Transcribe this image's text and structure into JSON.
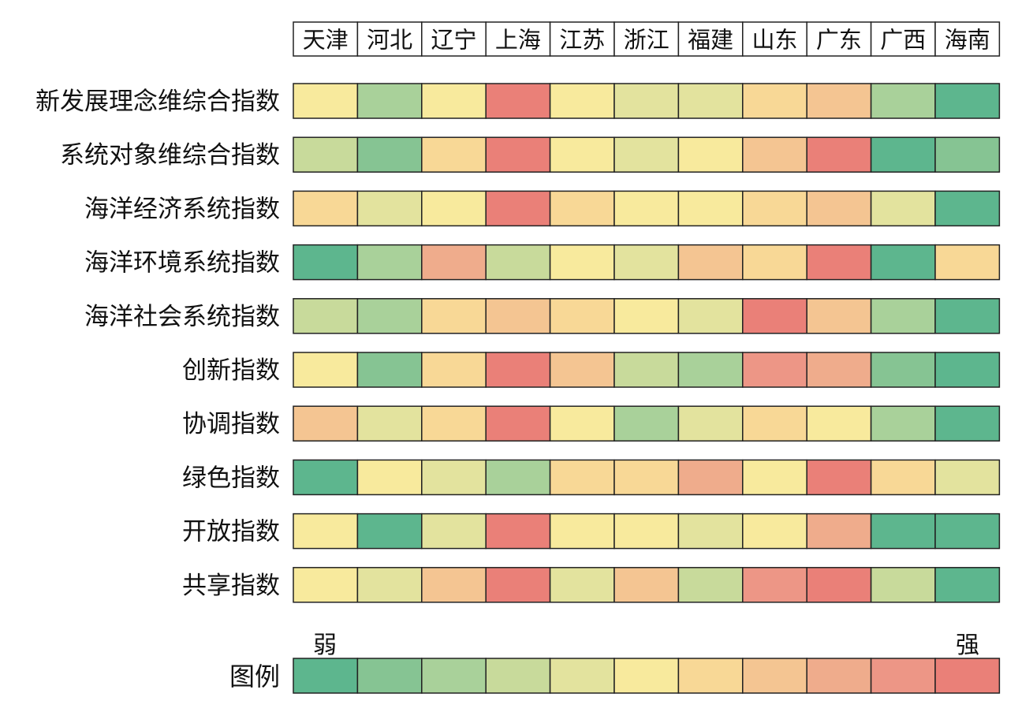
{
  "chart_data": {
    "type": "heatmap",
    "columns": [
      "天津",
      "河北",
      "辽宁",
      "上海",
      "江苏",
      "浙江",
      "福建",
      "山东",
      "广东",
      "广西",
      "海南"
    ],
    "rows": [
      {
        "label": "新发展理念维综合指数",
        "levels": [
          6,
          3,
          6,
          11,
          6,
          5,
          5,
          7,
          8,
          3,
          1
        ]
      },
      {
        "label": "系统对象维综合指数",
        "levels": [
          4,
          2,
          7,
          11,
          6,
          5,
          6,
          8,
          11,
          1,
          2
        ]
      },
      {
        "label": "海洋经济系统指数",
        "levels": [
          7,
          5,
          6,
          11,
          7,
          6,
          6,
          7,
          8,
          5,
          1
        ]
      },
      {
        "label": "海洋环境系统指数",
        "levels": [
          1,
          3,
          9,
          4,
          6,
          5,
          8,
          7,
          11,
          1,
          7
        ]
      },
      {
        "label": "海洋社会系统指数",
        "levels": [
          4,
          3,
          7,
          8,
          7,
          6,
          5,
          11,
          8,
          3,
          1
        ]
      },
      {
        "label": "创新指数",
        "levels": [
          6,
          2,
          7,
          11,
          8,
          4,
          3,
          10,
          9,
          2,
          1
        ]
      },
      {
        "label": "协调指数",
        "levels": [
          8,
          5,
          7,
          11,
          6,
          3,
          5,
          7,
          6,
          3,
          1
        ]
      },
      {
        "label": "绿色指数",
        "levels": [
          1,
          6,
          5,
          3,
          7,
          7,
          9,
          6,
          11,
          7,
          5
        ]
      },
      {
        "label": "开放指数",
        "levels": [
          6,
          1,
          5,
          11,
          6,
          6,
          5,
          6,
          9,
          1,
          1
        ]
      },
      {
        "label": "共享指数",
        "levels": [
          6,
          5,
          8,
          11,
          5,
          8,
          4,
          10,
          11,
          4,
          1
        ]
      }
    ],
    "legend": {
      "label": "图例",
      "weak_label": "弱",
      "strong_label": "强",
      "levels": [
        1,
        2,
        3,
        4,
        5,
        6,
        7,
        8,
        9,
        10,
        11
      ]
    },
    "colors": [
      "#5db68e",
      "#86c493",
      "#a9d19a",
      "#c8da9b",
      "#e3e39e",
      "#f8ea9d",
      "#f8d896",
      "#f4c592",
      "#efac8c",
      "#ed9686",
      "#ea8078"
    ]
  }
}
